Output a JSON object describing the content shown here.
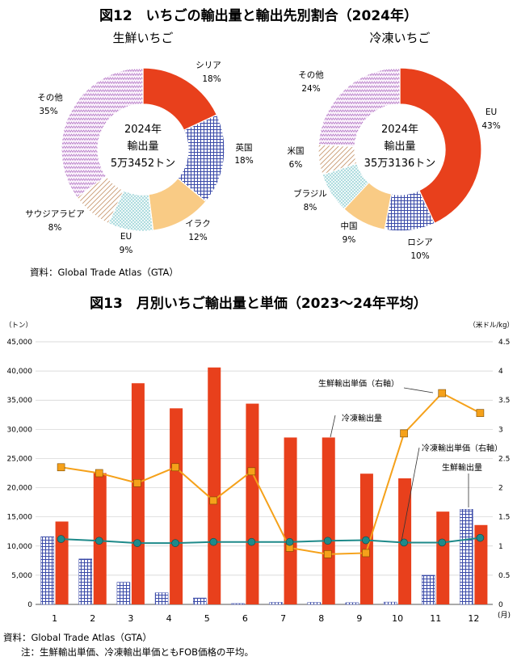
{
  "fig12": {
    "title": "図12　いちごの輸出量と輸出先別割合（2024年）",
    "source": "資料：Global Trade Atlas（GTA）"
  },
  "fig13": {
    "title": "図13　月別いちご輸出量と単価（2023〜24年平均）",
    "source": "資料：Global Trade Atlas（GTA）",
    "note": "注：生鮮輸出単価、冷凍輸出単価ともFOB価格の平均。"
  },
  "colors": {
    "red": "#e8401c",
    "blue_hatch": "#3a4aa8",
    "orange_line": "#f5a11a",
    "teal_line": "#1e8a8a",
    "orange_fill": "#f9cb85",
    "cyan_dots": "#6cc3c8",
    "purple_zigzag": "#b57ac6",
    "brown_diag": "#c89a72"
  },
  "chart_data": [
    {
      "type": "pie",
      "title": "生鮮いちご",
      "center_text": [
        "2024年",
        "輸出量",
        "5万3452トン"
      ],
      "slices": [
        {
          "name": "シリア",
          "value": 18,
          "label": "18%",
          "pattern": "solid-red"
        },
        {
          "name": "英国",
          "value": 18,
          "label": "18%",
          "pattern": "blue-grid"
        },
        {
          "name": "イラク",
          "value": 12,
          "label": "12%",
          "pattern": "orange"
        },
        {
          "name": "EU",
          "value": 9,
          "label": "9%",
          "pattern": "cyan-dots"
        },
        {
          "name": "サウジアラビア",
          "value": 8,
          "label": "8%",
          "pattern": "brown-diag"
        },
        {
          "name": "その他",
          "value": 35,
          "label": "35%",
          "pattern": "purple-zigzag"
        }
      ]
    },
    {
      "type": "pie",
      "title": "冷凍いちご",
      "center_text": [
        "2024年",
        "輸出量",
        "35万3136トン"
      ],
      "slices": [
        {
          "name": "EU",
          "value": 43,
          "label": "43%",
          "pattern": "solid-red"
        },
        {
          "name": "ロシア",
          "value": 10,
          "label": "10%",
          "pattern": "blue-grid"
        },
        {
          "name": "中国",
          "value": 9,
          "label": "9%",
          "pattern": "orange"
        },
        {
          "name": "ブラジル",
          "value": 8,
          "label": "8%",
          "pattern": "cyan-dots"
        },
        {
          "name": "米国",
          "value": 6,
          "label": "6%",
          "pattern": "brown-diag"
        },
        {
          "name": "その他",
          "value": 24,
          "label": "24%",
          "pattern": "purple-zigzag"
        }
      ]
    },
    {
      "type": "bar",
      "categories": [
        "1",
        "2",
        "3",
        "4",
        "5",
        "6",
        "7",
        "8",
        "9",
        "10",
        "11",
        "12"
      ],
      "x_unit": "(月)",
      "y_left_unit": "（トン）",
      "y_right_unit": "（米ドル/kg）",
      "y_left_ticks": [
        "0",
        "5,000",
        "10,000",
        "15,000",
        "20,000",
        "25,000",
        "30,000",
        "35,000",
        "40,000",
        "45,000"
      ],
      "y_right_ticks": [
        "0",
        "0.5",
        "1",
        "1.5",
        "2",
        "2.5",
        "3",
        "3.5",
        "4",
        "4.5"
      ],
      "ylim_left": [
        0,
        45000
      ],
      "ylim_right": [
        0,
        4.5
      ],
      "grid": true,
      "series": [
        {
          "name": "生鮮輸出量",
          "kind": "bar",
          "axis": "left",
          "values": [
            11600,
            7800,
            3800,
            2000,
            1100,
            150,
            350,
            350,
            300,
            400,
            5000,
            16300
          ]
        },
        {
          "name": "冷凍輸出量",
          "kind": "bar",
          "axis": "left",
          "values": [
            14200,
            22500,
            37900,
            33600,
            40600,
            34400,
            28600,
            28600,
            22400,
            21600,
            15900,
            13600
          ]
        },
        {
          "name": "生鮮輸出単価（右軸）",
          "kind": "line",
          "axis": "right",
          "values": [
            2.35,
            2.25,
            2.08,
            2.35,
            1.78,
            2.28,
            0.97,
            0.86,
            0.88,
            2.93,
            3.62,
            3.28
          ]
        },
        {
          "name": "冷凍輸出単価（右軸）",
          "kind": "line",
          "axis": "right",
          "values": [
            1.12,
            1.09,
            1.05,
            1.05,
            1.07,
            1.07,
            1.07,
            1.09,
            1.1,
            1.06,
            1.06,
            1.14
          ]
        }
      ],
      "annotations": [
        "生鮮輸出単価（右軸）",
        "冷凍輸出量",
        "冷凍輸出単価（右軸）",
        "生鮮輸出量"
      ]
    }
  ]
}
